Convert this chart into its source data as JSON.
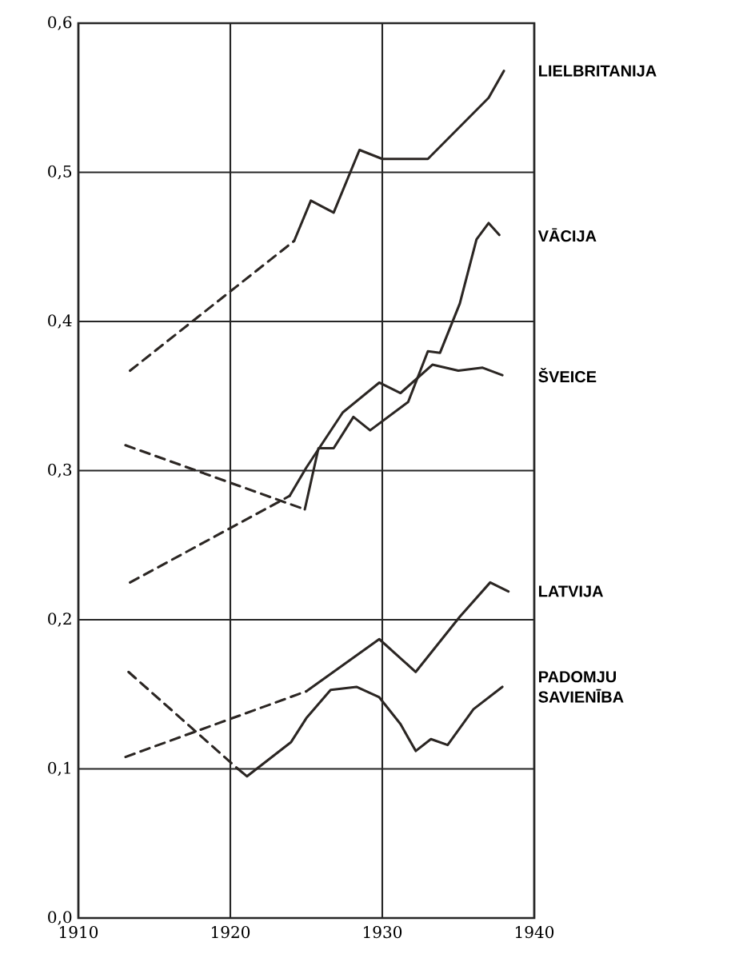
{
  "chart_data": {
    "type": "line",
    "xlim": [
      1910,
      1940
    ],
    "ylim": [
      0,
      0.6
    ],
    "xticks": [
      1910,
      1920,
      1930,
      1940
    ],
    "yticks": [
      {
        "value": 0,
        "label": "0,0"
      },
      {
        "value": 0.1,
        "label": "0,1"
      },
      {
        "value": 0.2,
        "label": "0,2"
      },
      {
        "value": 0.3,
        "label": "0,3"
      },
      {
        "value": 0.4,
        "label": "0,4"
      },
      {
        "value": 0.5,
        "label": "0,5"
      },
      {
        "value": 0.6,
        "label": "0,6"
      }
    ],
    "grid": true,
    "series": [
      {
        "color": "#2b2623",
        "line_style": "dashed",
        "x": [
          1913.4,
          1924.2
        ],
        "values": [
          0.367,
          0.454
        ]
      },
      {
        "name": "LIELBRITANIJA",
        "color": "#2b2623",
        "line_style": "solid",
        "x": [
          1924.2,
          1925.3,
          1926.8,
          1928.5,
          1930,
          1933,
          1937,
          1938
        ],
        "values": [
          0.454,
          0.481,
          0.473,
          0.515,
          0.509,
          0.509,
          0.55,
          0.568
        ]
      },
      {
        "color": "#2b2623",
        "line_style": "dashed",
        "x": [
          1913.1,
          1924.9
        ],
        "values": [
          0.317,
          0.274
        ]
      },
      {
        "name": "VĀCIJA",
        "color": "#2b2623",
        "line_style": "solid",
        "x": [
          1924.9,
          1925.8,
          1926.8,
          1928.1,
          1929.2,
          1931.7,
          1933,
          1933.8,
          1935.1,
          1936.2,
          1937,
          1937.7
        ],
        "values": [
          0.274,
          0.315,
          0.315,
          0.336,
          0.327,
          0.346,
          0.38,
          0.379,
          0.412,
          0.455,
          0.466,
          0.458
        ]
      },
      {
        "color": "#2b2623",
        "line_style": "dashed",
        "x": [
          1913.4,
          1923.9
        ],
        "values": [
          0.225,
          0.283
        ]
      },
      {
        "name": "ŠVEICE",
        "color": "#2b2623",
        "line_style": "solid",
        "x": [
          1923.9,
          1925,
          1927.4,
          1929.8,
          1931.2,
          1933.3,
          1935,
          1936.6,
          1937.9
        ],
        "values": [
          0.283,
          0.302,
          0.339,
          0.359,
          0.352,
          0.371,
          0.367,
          0.369,
          0.364
        ]
      },
      {
        "color": "#2b2623",
        "line_style": "dashed",
        "x": [
          1913.1,
          1925
        ],
        "values": [
          0.108,
          0.152
        ]
      },
      {
        "name": "LATVIJA",
        "color": "#2b2623",
        "line_style": "solid",
        "x": [
          1925,
          1929.8,
          1932.2,
          1935.1,
          1937.1,
          1938.3
        ],
        "values": [
          0.152,
          0.187,
          0.165,
          0.202,
          0.225,
          0.219
        ]
      },
      {
        "color": "#2b2623",
        "line_style": "dashed",
        "x": [
          1913.3,
          1920.5
        ],
        "values": [
          0.165,
          0.1
        ]
      },
      {
        "name": "PADOMJU SAVIENĪBA",
        "color": "#2b2623",
        "line_style": "solid",
        "x": [
          1920.5,
          1921.1,
          1924,
          1925,
          1926.6,
          1928.3,
          1929.8,
          1931.2,
          1932.2,
          1933.2,
          1934.3,
          1936,
          1937.9
        ],
        "values": [
          0.1,
          0.095,
          0.118,
          0.134,
          0.153,
          0.155,
          0.148,
          0.13,
          0.112,
          0.12,
          0.116,
          0.14,
          0.155
        ]
      }
    ]
  }
}
